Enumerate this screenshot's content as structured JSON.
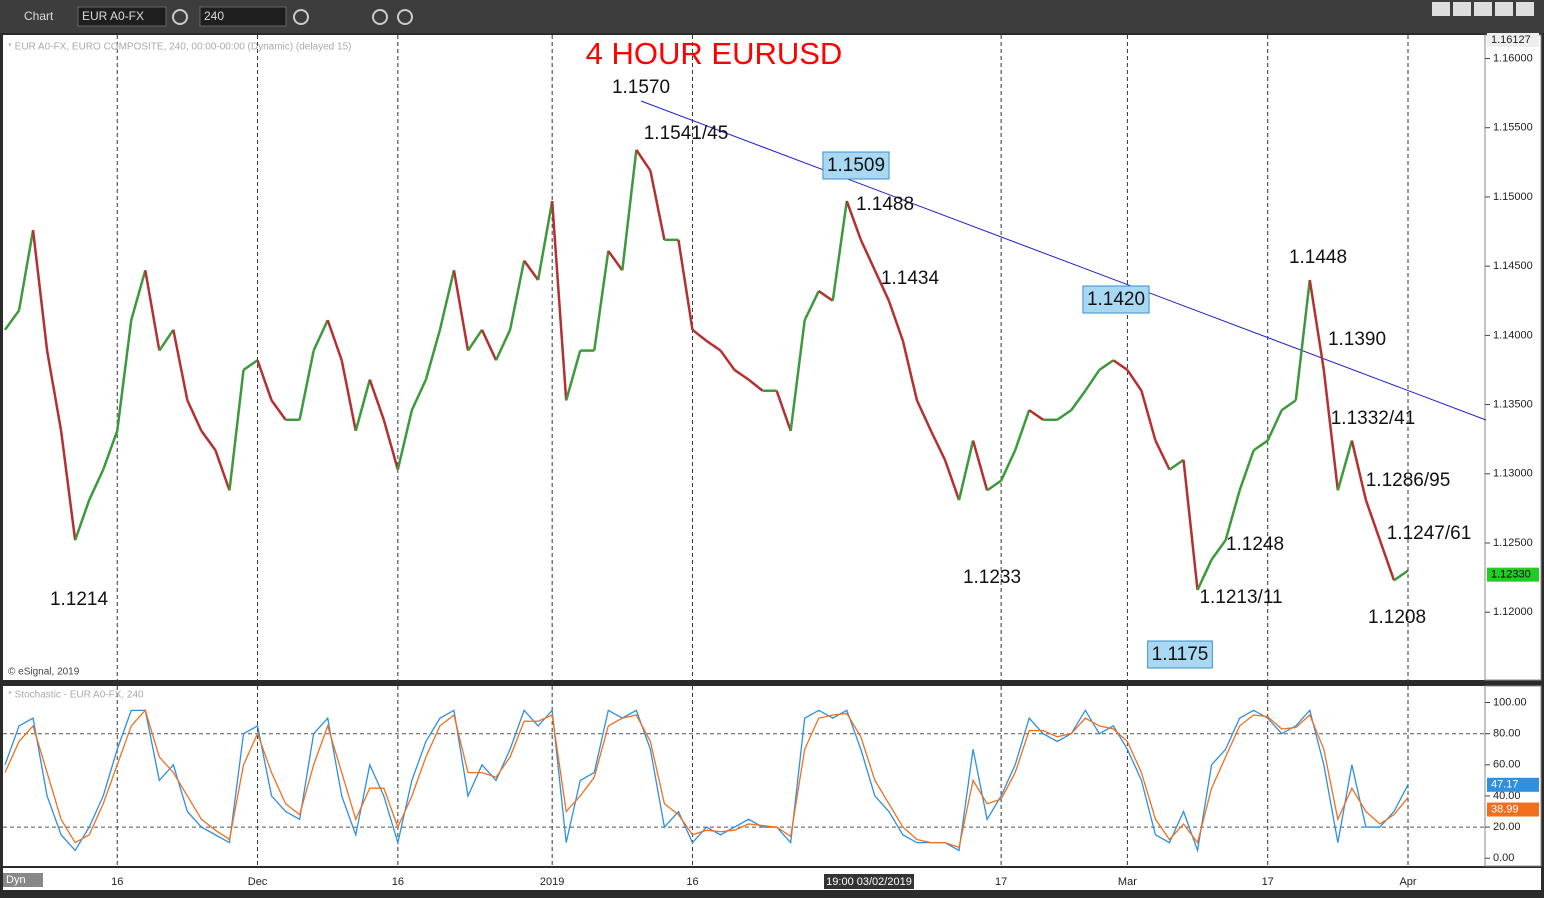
{
  "toolbar": {
    "app": "Chart",
    "symbol": "EUR A0-FX",
    "interval": "240",
    "mode": "Dyn"
  },
  "chart_data": [
    {
      "type": "line",
      "title": "4 HOUR EURUSD",
      "title_color": "#ff0000",
      "subtitle": "* EUR A0-FX, EURO COMPOSITE, 240, 00:00-00:00 (Dynamic) (delayed 15)",
      "credit": "© eSignal, 2019",
      "up_color": "#3c9a3c",
      "down_color": "#b53030",
      "values": [
        1.1404,
        1.1418,
        1.1476,
        1.1389,
        1.1331,
        1.1252,
        1.1281,
        1.1303,
        1.1331,
        1.1411,
        1.1447,
        1.1389,
        1.1404,
        1.1353,
        1.1331,
        1.1317,
        1.1288,
        1.1375,
        1.1382,
        1.1353,
        1.1339,
        1.1339,
        1.1389,
        1.1411,
        1.1382,
        1.1331,
        1.1368,
        1.1339,
        1.1303,
        1.1346,
        1.1368,
        1.1404,
        1.1447,
        1.1389,
        1.1404,
        1.1382,
        1.1404,
        1.1454,
        1.144,
        1.1497,
        1.1353,
        1.1389,
        1.1389,
        1.1461,
        1.1447,
        1.1534,
        1.1519,
        1.1469,
        1.1469,
        1.1404,
        1.1396,
        1.1389,
        1.1375,
        1.1368,
        1.136,
        1.136,
        1.1331,
        1.1411,
        1.1432,
        1.1425,
        1.1497,
        1.1469,
        1.1447,
        1.1425,
        1.1396,
        1.1353,
        1.1331,
        1.131,
        1.1281,
        1.1324,
        1.1288,
        1.1295,
        1.1317,
        1.1346,
        1.1339,
        1.1339,
        1.1346,
        1.136,
        1.1375,
        1.1382,
        1.1375,
        1.136,
        1.1324,
        1.1303,
        1.131,
        1.1216,
        1.1238,
        1.1252,
        1.1288,
        1.1317,
        1.1324,
        1.1346,
        1.1353,
        1.144,
        1.1375,
        1.1288,
        1.1324,
        1.1281,
        1.1252,
        1.1223,
        1.123
      ],
      "ylim": [
        1.1151,
        1.1617
      ],
      "yticks": [
        {
          "value": 1.12,
          "label": "1.12000"
        },
        {
          "value": 1.125,
          "label": "1.12500"
        },
        {
          "value": 1.13,
          "label": "1.13000"
        },
        {
          "value": 1.135,
          "label": "1.13500"
        },
        {
          "value": 1.14,
          "label": "1.14000"
        },
        {
          "value": 1.145,
          "label": "1.14500"
        },
        {
          "value": 1.15,
          "label": "1.15000"
        },
        {
          "value": 1.155,
          "label": "1.15500"
        },
        {
          "value": 1.16,
          "label": "1.16000"
        }
      ],
      "top_label": "1.16127",
      "last_label": "1.12330",
      "trendline_color": "#2020d0",
      "annotations": [
        {
          "text": "1.1570",
          "boxed": false
        },
        {
          "text": "1.1541/45",
          "boxed": false
        },
        {
          "text": "1.1509",
          "boxed": true
        },
        {
          "text": "1.1488",
          "boxed": false
        },
        {
          "text": "1.1434",
          "boxed": false
        },
        {
          "text": "1.1420",
          "boxed": true
        },
        {
          "text": "1.1448",
          "boxed": false
        },
        {
          "text": "1.1390",
          "boxed": false
        },
        {
          "text": "1.1332/41",
          "boxed": false
        },
        {
          "text": "1.1286/95",
          "boxed": false
        },
        {
          "text": "1.1247/61",
          "boxed": false
        },
        {
          "text": "1.1233",
          "boxed": false
        },
        {
          "text": "1.1214",
          "boxed": false
        },
        {
          "text": "1.1213/11",
          "boxed": false
        },
        {
          "text": "1.1248",
          "boxed": false
        },
        {
          "text": "1.1208",
          "boxed": false
        },
        {
          "text": "1.1175",
          "boxed": true
        }
      ]
    },
    {
      "type": "line",
      "title": "* Stochastic - EUR A0-FX, 240",
      "crosshair_label": "19:00 03/02/2019",
      "categories": [
        null,
        null,
        null,
        null,
        null,
        null,
        null,
        null,
        "16",
        null,
        null,
        null,
        null,
        null,
        null,
        null,
        null,
        null,
        "Dec",
        null,
        null,
        null,
        null,
        null,
        null,
        null,
        null,
        null,
        "16",
        null,
        null,
        null,
        null,
        null,
        null,
        null,
        null,
        null,
        null,
        "2019",
        null,
        null,
        null,
        null,
        null,
        null,
        null,
        null,
        null,
        "16",
        null,
        null,
        null,
        null,
        null,
        null,
        null,
        null,
        null,
        null,
        null,
        null,
        null,
        null,
        null,
        null,
        null,
        null,
        null,
        null,
        null,
        "17",
        null,
        null,
        null,
        null,
        null,
        null,
        null,
        null,
        "Mar",
        null,
        null,
        null,
        null,
        null,
        null,
        null,
        null,
        null,
        "17",
        null,
        null,
        null,
        null,
        null,
        null,
        null,
        null,
        null,
        "Apr"
      ],
      "series": [
        {
          "color": "#2f8fe0",
          "values": [
            60,
            85,
            90,
            40,
            15,
            5,
            20,
            40,
            70,
            95,
            95,
            50,
            60,
            30,
            20,
            15,
            10,
            80,
            85,
            40,
            30,
            25,
            80,
            90,
            40,
            15,
            60,
            40,
            10,
            50,
            75,
            90,
            95,
            40,
            60,
            50,
            70,
            95,
            85,
            95,
            10,
            50,
            55,
            95,
            90,
            95,
            70,
            20,
            30,
            10,
            20,
            15,
            20,
            25,
            20,
            20,
            10,
            90,
            95,
            90,
            95,
            70,
            40,
            30,
            15,
            10,
            10,
            10,
            5,
            70,
            25,
            40,
            60,
            90,
            80,
            75,
            80,
            95,
            80,
            85,
            70,
            50,
            15,
            10,
            30,
            5,
            60,
            70,
            90,
            95,
            90,
            80,
            85,
            95,
            60,
            10,
            60,
            20,
            20,
            30,
            47.17
          ]
        },
        {
          "color": "#f07020",
          "values": [
            55,
            75,
            85,
            55,
            25,
            10,
            15,
            35,
            60,
            85,
            95,
            65,
            55,
            40,
            25,
            18,
            12,
            60,
            80,
            55,
            35,
            28,
            60,
            85,
            55,
            25,
            45,
            45,
            20,
            40,
            65,
            85,
            92,
            55,
            55,
            52,
            65,
            88,
            88,
            92,
            30,
            40,
            52,
            85,
            90,
            92,
            75,
            35,
            28,
            15,
            18,
            17,
            18,
            22,
            21,
            20,
            14,
            70,
            90,
            92,
            93,
            78,
            50,
            35,
            20,
            12,
            10,
            10,
            7,
            50,
            35,
            38,
            55,
            82,
            82,
            78,
            80,
            90,
            85,
            83,
            75,
            55,
            25,
            12,
            22,
            10,
            45,
            65,
            85,
            92,
            91,
            83,
            84,
            92,
            70,
            25,
            45,
            30,
            22,
            28,
            38.99
          ]
        }
      ],
      "ylim": [
        -5,
        110
      ],
      "yticks": [
        {
          "value": 0,
          "label": "0.00"
        },
        {
          "value": 20,
          "label": "20.00"
        },
        {
          "value": 40,
          "label": "40.00"
        },
        {
          "value": 60,
          "label": "60.00"
        },
        {
          "value": 80,
          "label": "80.00"
        },
        {
          "value": 100,
          "label": "100.00"
        }
      ],
      "levels": [
        20,
        80
      ]
    }
  ]
}
